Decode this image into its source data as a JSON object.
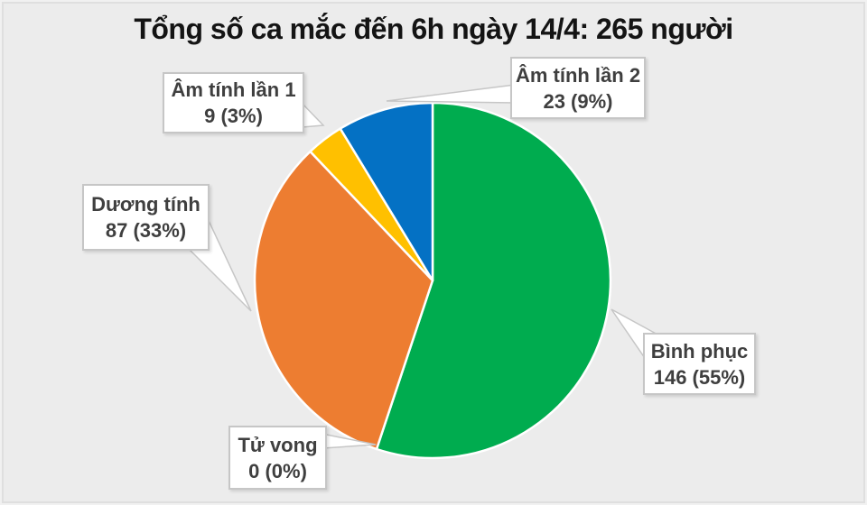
{
  "window": {
    "background": "#ECECEC",
    "frame_line_color": "#DFDFDF"
  },
  "chart_data": {
    "type": "pie",
    "title": "Tổng số ca mắc đến 6h ngày 14/4: 265 người",
    "title_color": "#141414",
    "total": 265,
    "slices": [
      {
        "label": "Bình phục",
        "value": 146,
        "percent": 55,
        "value_text": "146 (55%)",
        "color": "#00AC4F"
      },
      {
        "label": "Tử vong",
        "value": 0,
        "percent": 0,
        "value_text": "0 (0%)",
        "color": null
      },
      {
        "label": "Dương tính",
        "value": 87,
        "percent": 33,
        "value_text": "87 (33%)",
        "color": "#ED7D31"
      },
      {
        "label": "Âm tính lần 1",
        "value": 9,
        "percent": 3,
        "value_text": "9 (3%)",
        "color": "#FFC000"
      },
      {
        "label": "Âm tính lần 2",
        "value": 23,
        "percent": 9,
        "value_text": "23 (9%)",
        "color": "#0471C4"
      }
    ],
    "layout": {
      "start_angle_deg": 0,
      "direction": "clockwise",
      "center": [
        479,
        311
      ],
      "radius": 197,
      "slice_border": {
        "color": "#FFFFFF",
        "width": 2.5
      },
      "legend": "callouts",
      "callout_style": {
        "fill": "#FFFFFF",
        "border": "#C6C6C6",
        "text_color": "#3F3F3F"
      },
      "callout_tails": [
        {
          "slice": 0,
          "tip": [
            677,
            343
          ],
          "base": [
            [
              716,
              400
            ],
            [
              730,
              372
            ]
          ]
        },
        {
          "slice": 1,
          "tip": [
            416,
            493
          ],
          "base": [
            [
              332,
              476
            ],
            [
              358,
              497
            ]
          ]
        },
        {
          "slice": 2,
          "tip": [
            278,
            345
          ],
          "base": [
            [
              226,
              234
            ],
            [
              205,
              272
            ]
          ]
        },
        {
          "slice": 3,
          "tip": [
            358,
            139
          ],
          "base": [
            [
              332,
              112
            ],
            [
              311,
              143
            ]
          ]
        },
        {
          "slice": 4,
          "tip": [
            428,
            112
          ],
          "base": [
            [
              570,
              94
            ],
            [
              570,
              114
            ]
          ]
        }
      ]
    }
  }
}
